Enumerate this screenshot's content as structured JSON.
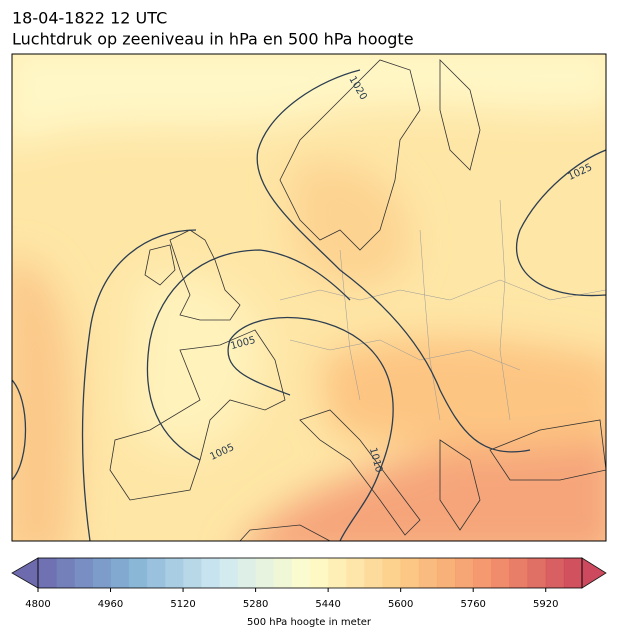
{
  "header": {
    "title": "18-04-1822 12 UTC",
    "subtitle": "Luchtdruk op zeeniveau in hPa en 500 hPa hoogte"
  },
  "contour_labels": [
    "1020",
    "1025",
    "1005",
    "1005",
    "1010"
  ],
  "colorbar": {
    "label": "500 hPa hoogte in meter",
    "lim": [
      4800,
      6000
    ],
    "step": 40,
    "ticks": [
      4800,
      4960,
      5120,
      5280,
      5440,
      5600,
      5760,
      5920
    ],
    "colormap": [
      "#5e5aa6",
      "#76a9d0",
      "#c9e6f0",
      "#fefdc6",
      "#fdc77b",
      "#f2885d",
      "#c8364c"
    ]
  }
}
